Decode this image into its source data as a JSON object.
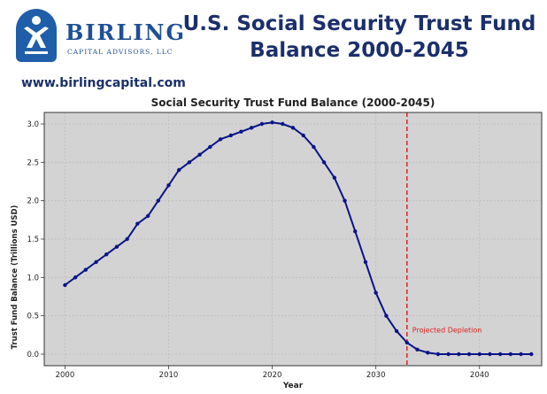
{
  "header": {
    "logo_name": "BIRLING",
    "logo_subtitle": "CAPITAL ADVISORS, LLC",
    "title_line1": "U.S. Social Security Trust Fund",
    "title_line2": "Balance 2000-2045",
    "website": "www.birlingcapital.com"
  },
  "colors": {
    "brand": "#1f4f95",
    "line": "#0a1488",
    "marker": "#0a1488",
    "depletion": "#e02020",
    "plot_bg": "#d3d3d3"
  },
  "chart_data": {
    "type": "line",
    "title": "Social Security Trust Fund Balance (2000-2045)",
    "xlabel": "Year",
    "ylabel": "Trust Fund Balance (Trillions USD)",
    "xlim": [
      1998,
      2046
    ],
    "ylim": [
      -0.15,
      3.15
    ],
    "xticks": [
      2000,
      2010,
      2020,
      2030,
      2040
    ],
    "yticks": [
      0.0,
      0.5,
      1.0,
      1.5,
      2.0,
      2.5,
      3.0
    ],
    "ytick_labels": [
      "0.0",
      "0.5",
      "1.0",
      "1.5",
      "2.0",
      "2.5",
      "3.0"
    ],
    "grid": true,
    "series": [
      {
        "name": "Trust Fund Balance",
        "x": [
          2000,
          2001,
          2002,
          2003,
          2004,
          2005,
          2006,
          2007,
          2008,
          2009,
          2010,
          2011,
          2012,
          2013,
          2014,
          2015,
          2016,
          2017,
          2018,
          2019,
          2020,
          2021,
          2022,
          2023,
          2024,
          2025,
          2026,
          2027,
          2028,
          2029,
          2030,
          2031,
          2032,
          2033,
          2034,
          2035,
          2036,
          2037,
          2038,
          2039,
          2040,
          2041,
          2042,
          2043,
          2044,
          2045
        ],
        "values": [
          0.9,
          1.0,
          1.1,
          1.2,
          1.3,
          1.4,
          1.5,
          1.7,
          1.8,
          2.0,
          2.2,
          2.4,
          2.5,
          2.6,
          2.7,
          2.8,
          2.85,
          2.9,
          2.95,
          3.0,
          3.02,
          3.0,
          2.95,
          2.85,
          2.7,
          2.5,
          2.3,
          2.0,
          1.6,
          1.2,
          0.8,
          0.5,
          0.3,
          0.15,
          0.06,
          0.02,
          0.0,
          0.0,
          0.0,
          0.0,
          0.0,
          0.0,
          0.0,
          0.0,
          0.0,
          0.0
        ]
      }
    ],
    "annotations": [
      {
        "type": "vline",
        "x": 2033,
        "style": "dashed",
        "label": "Projected Depletion"
      }
    ]
  }
}
